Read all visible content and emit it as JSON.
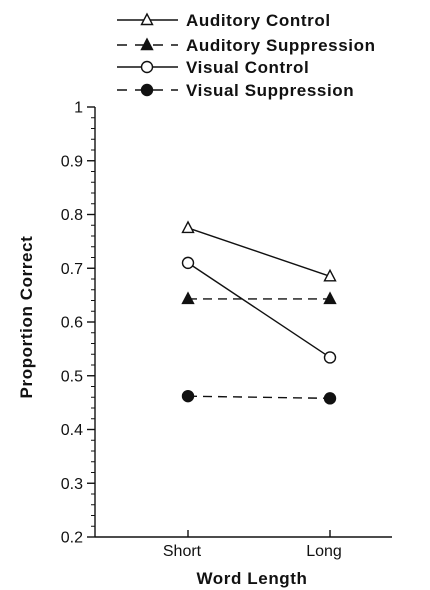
{
  "chart_data": {
    "type": "line",
    "title": "",
    "xlabel": "Word Length",
    "ylabel": "Proportion Correct",
    "categories": [
      "Short",
      "Long"
    ],
    "ylim": [
      0.2,
      1
    ],
    "y_ticks": [
      "0.2",
      "0.3",
      "0.4",
      "0.5",
      "0.6",
      "0.7",
      "0.8",
      "0.9",
      "1"
    ],
    "grid": false,
    "legend_position": "top",
    "series": [
      {
        "name": "Auditory Control",
        "values": [
          0.775,
          0.685
        ],
        "marker": "open-triangle",
        "line": "solid"
      },
      {
        "name": "Auditory Suppression",
        "values": [
          0.643,
          0.643
        ],
        "marker": "filled-triangle",
        "line": "dashed"
      },
      {
        "name": "Visual Control",
        "values": [
          0.71,
          0.534
        ],
        "marker": "open-circle",
        "line": "solid"
      },
      {
        "name": "Visual Suppression",
        "values": [
          0.462,
          0.458
        ],
        "marker": "filled-circle",
        "line": "dashed"
      }
    ],
    "colors": {
      "ink": "#111111",
      "background": "#ffffff"
    }
  }
}
